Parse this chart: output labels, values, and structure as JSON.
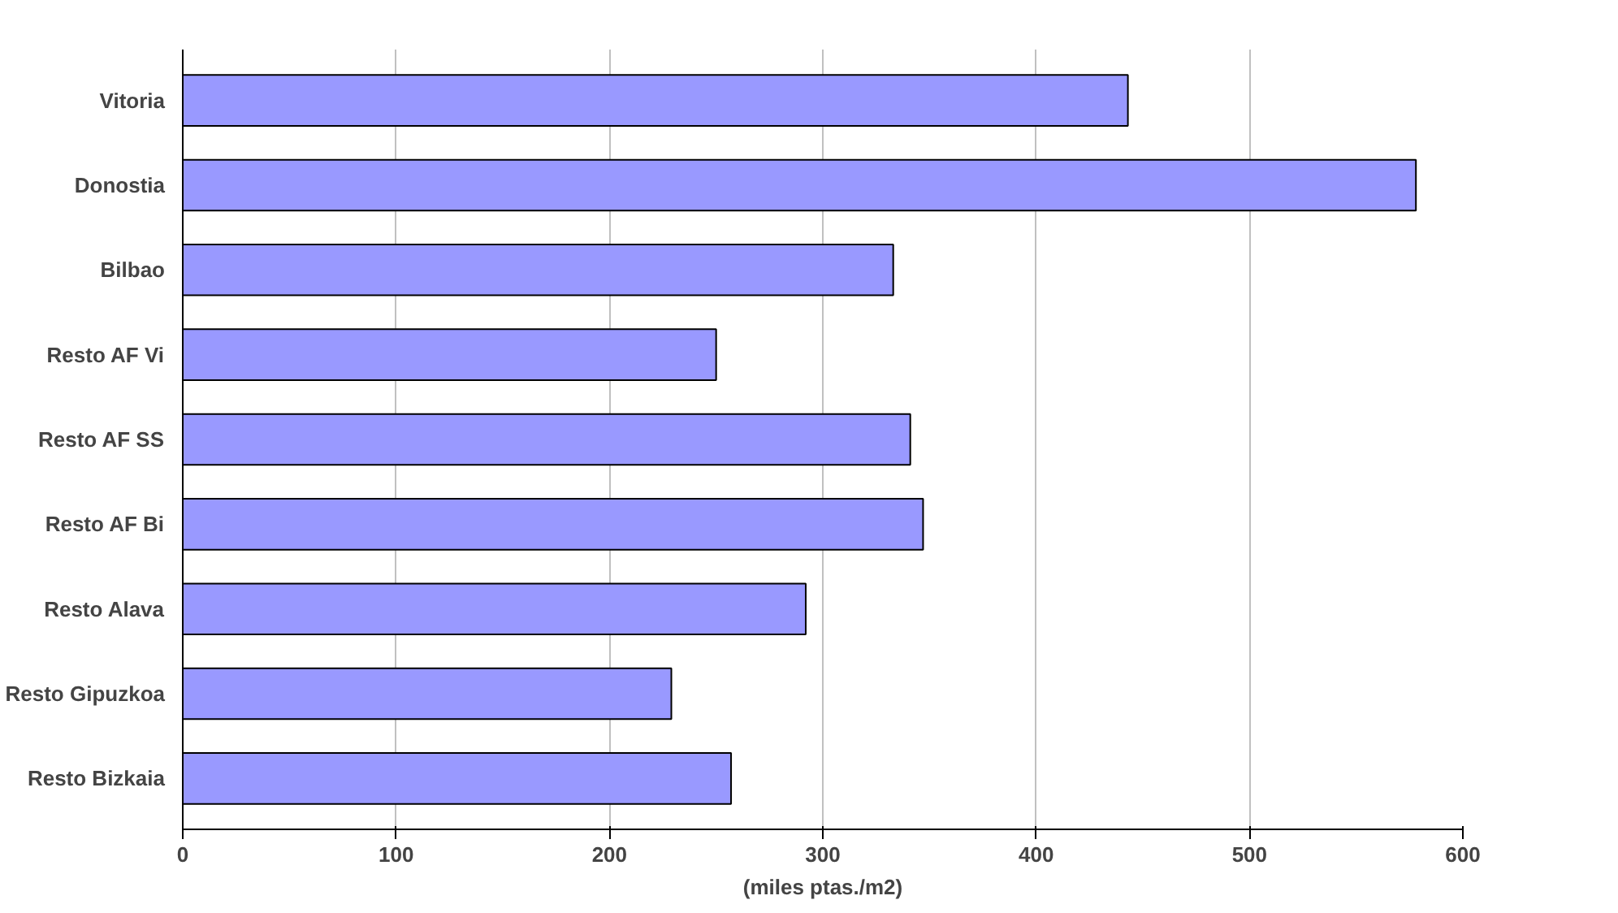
{
  "chart_data": {
    "type": "bar",
    "orientation": "horizontal",
    "xlabel": "(miles ptas./m2)",
    "categories": [
      "Vitoria",
      "Donostia",
      "Bilbao",
      "Resto AF Vi",
      "Resto AF SS",
      "Resto AF Bi",
      "Resto Alava",
      "Resto Gipuzkoa",
      "Resto Bizkaia"
    ],
    "values": [
      443,
      578,
      333,
      250,
      341,
      347,
      292,
      229,
      257
    ],
    "color": "#9999ff",
    "xlim": [
      0,
      600
    ],
    "xticks": [
      0,
      100,
      200,
      300,
      400,
      500,
      600
    ],
    "grid": "x"
  }
}
